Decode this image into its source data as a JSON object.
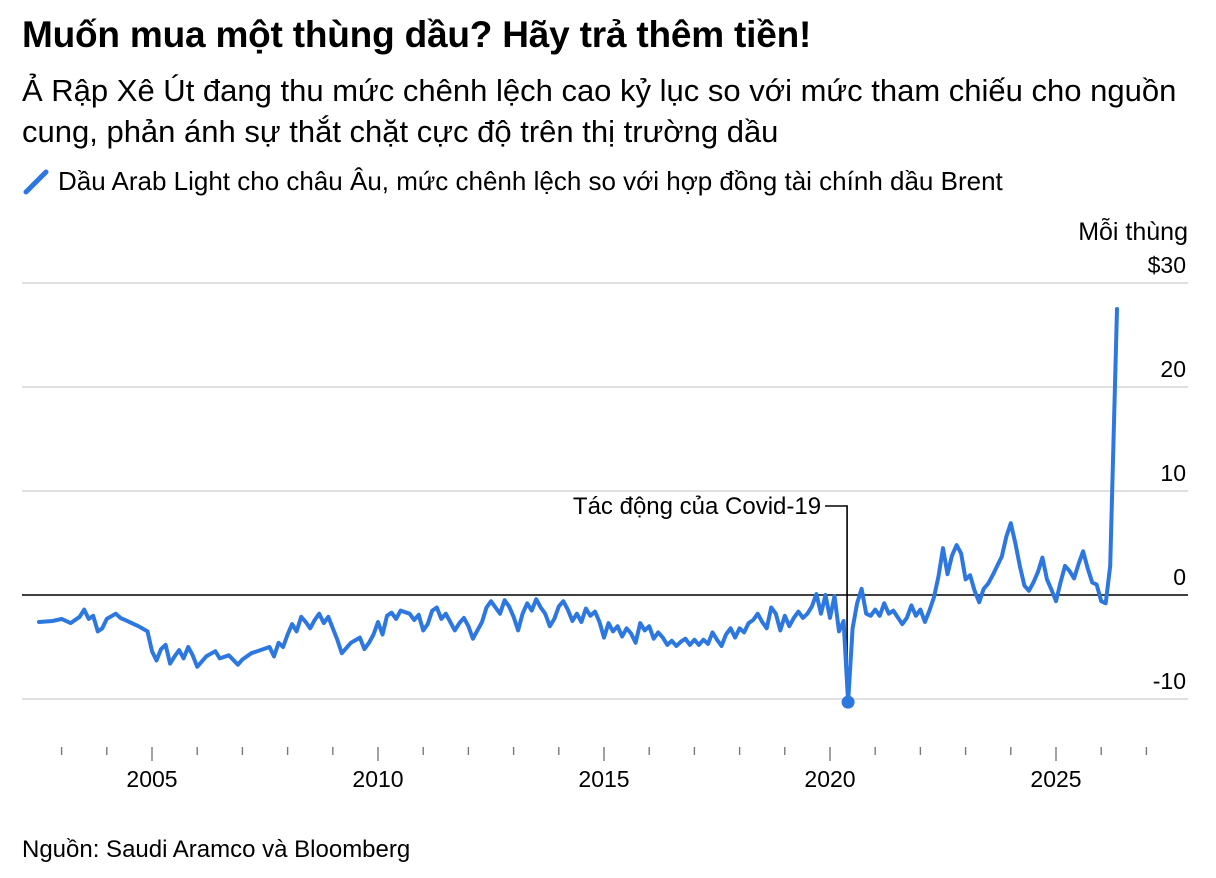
{
  "chart_data": {
    "type": "line",
    "title": "Muốn mua một thùng dầu? Hãy trả thêm tiền!",
    "subtitle": "Ả Rập Xê Út đang thu mức chênh lệch cao kỷ lục so với mức tham chiếu cho nguồn cung, phản ánh sự thắt chặt cực độ trên thị trường dầu",
    "legend": "Dầu Arab Light cho châu Âu, mức chênh lệch so với hợp đồng tài chính dầu Brent",
    "ylabel": "Mỗi thùng",
    "source": "Nguồn: Saudi Aramco và Bloomberg",
    "annotation": {
      "text": "Tác động của Covid-19",
      "x": 2020.4,
      "y": -10.3
    },
    "xlim": [
      2002.3,
      2028.5
    ],
    "ylim": [
      -13,
      30
    ],
    "y_ticks": [
      {
        "value": 30,
        "label": "$30"
      },
      {
        "value": 20,
        "label": "20"
      },
      {
        "value": 10,
        "label": "10"
      },
      {
        "value": 0,
        "label": "0"
      },
      {
        "value": -10,
        "label": "-10"
      }
    ],
    "x_major_ticks": [
      {
        "value": 2005,
        "label": "2005"
      },
      {
        "value": 2010,
        "label": "2010"
      },
      {
        "value": 2015,
        "label": "2015"
      },
      {
        "value": 2020,
        "label": "2020"
      },
      {
        "value": 2025,
        "label": "2025"
      }
    ],
    "series": [
      {
        "name": "Dầu Arab Light cho châu Âu, mức chênh lệch so với hợp đồng tài chính dầu Brent",
        "color": "#2d77e0",
        "points": [
          [
            2002.5,
            -2.6
          ],
          [
            2002.8,
            -2.5
          ],
          [
            2003.0,
            -2.3
          ],
          [
            2003.2,
            -2.7
          ],
          [
            2003.4,
            -2.1
          ],
          [
            2003.5,
            -1.4
          ],
          [
            2003.6,
            -2.3
          ],
          [
            2003.7,
            -2.0
          ],
          [
            2003.8,
            -3.5
          ],
          [
            2003.9,
            -3.2
          ],
          [
            2004.0,
            -2.3
          ],
          [
            2004.2,
            -1.8
          ],
          [
            2004.3,
            -2.2
          ],
          [
            2004.5,
            -2.6
          ],
          [
            2004.7,
            -3.0
          ],
          [
            2004.9,
            -3.5
          ],
          [
            2005.0,
            -5.4
          ],
          [
            2005.1,
            -6.3
          ],
          [
            2005.2,
            -5.2
          ],
          [
            2005.3,
            -4.8
          ],
          [
            2005.4,
            -6.6
          ],
          [
            2005.5,
            -5.9
          ],
          [
            2005.6,
            -5.3
          ],
          [
            2005.7,
            -6.1
          ],
          [
            2005.8,
            -5.0
          ],
          [
            2005.9,
            -5.8
          ],
          [
            2006.0,
            -6.9
          ],
          [
            2006.2,
            -5.9
          ],
          [
            2006.4,
            -5.4
          ],
          [
            2006.5,
            -6.1
          ],
          [
            2006.7,
            -5.8
          ],
          [
            2006.9,
            -6.7
          ],
          [
            2007.0,
            -6.2
          ],
          [
            2007.2,
            -5.6
          ],
          [
            2007.4,
            -5.3
          ],
          [
            2007.6,
            -5.0
          ],
          [
            2007.7,
            -5.9
          ],
          [
            2007.8,
            -4.6
          ],
          [
            2007.9,
            -5.0
          ],
          [
            2008.0,
            -3.8
          ],
          [
            2008.1,
            -2.8
          ],
          [
            2008.2,
            -3.5
          ],
          [
            2008.3,
            -2.1
          ],
          [
            2008.4,
            -2.6
          ],
          [
            2008.5,
            -3.2
          ],
          [
            2008.6,
            -2.4
          ],
          [
            2008.7,
            -1.8
          ],
          [
            2008.8,
            -2.7
          ],
          [
            2008.9,
            -2.1
          ],
          [
            2009.0,
            -3.2
          ],
          [
            2009.1,
            -4.3
          ],
          [
            2009.2,
            -5.6
          ],
          [
            2009.4,
            -4.6
          ],
          [
            2009.6,
            -4.1
          ],
          [
            2009.7,
            -5.2
          ],
          [
            2009.8,
            -4.6
          ],
          [
            2009.9,
            -3.8
          ],
          [
            2010.0,
            -2.6
          ],
          [
            2010.1,
            -3.8
          ],
          [
            2010.2,
            -2.0
          ],
          [
            2010.3,
            -1.7
          ],
          [
            2010.4,
            -2.3
          ],
          [
            2010.5,
            -1.5
          ],
          [
            2010.7,
            -1.8
          ],
          [
            2010.8,
            -2.4
          ],
          [
            2010.9,
            -1.9
          ],
          [
            2011.0,
            -3.4
          ],
          [
            2011.1,
            -2.8
          ],
          [
            2011.2,
            -1.5
          ],
          [
            2011.3,
            -1.2
          ],
          [
            2011.4,
            -2.3
          ],
          [
            2011.5,
            -1.8
          ],
          [
            2011.6,
            -2.6
          ],
          [
            2011.7,
            -3.4
          ],
          [
            2011.8,
            -2.7
          ],
          [
            2011.9,
            -2.2
          ],
          [
            2012.0,
            -3.0
          ],
          [
            2012.1,
            -4.2
          ],
          [
            2012.3,
            -2.6
          ],
          [
            2012.4,
            -1.2
          ],
          [
            2012.5,
            -0.6
          ],
          [
            2012.6,
            -1.2
          ],
          [
            2012.7,
            -1.8
          ],
          [
            2012.8,
            -0.5
          ],
          [
            2012.9,
            -1.1
          ],
          [
            2013.0,
            -2.1
          ],
          [
            2013.1,
            -3.4
          ],
          [
            2013.2,
            -1.8
          ],
          [
            2013.3,
            -0.8
          ],
          [
            2013.4,
            -1.5
          ],
          [
            2013.5,
            -0.4
          ],
          [
            2013.6,
            -1.2
          ],
          [
            2013.7,
            -1.8
          ],
          [
            2013.8,
            -3.0
          ],
          [
            2013.9,
            -2.3
          ],
          [
            2014.0,
            -1.1
          ],
          [
            2014.1,
            -0.6
          ],
          [
            2014.2,
            -1.4
          ],
          [
            2014.3,
            -2.5
          ],
          [
            2014.4,
            -1.8
          ],
          [
            2014.5,
            -2.6
          ],
          [
            2014.6,
            -1.3
          ],
          [
            2014.7,
            -2.0
          ],
          [
            2014.8,
            -1.6
          ],
          [
            2014.9,
            -2.6
          ],
          [
            2015.0,
            -4.1
          ],
          [
            2015.1,
            -2.7
          ],
          [
            2015.2,
            -3.5
          ],
          [
            2015.3,
            -3.0
          ],
          [
            2015.4,
            -4.0
          ],
          [
            2015.5,
            -3.2
          ],
          [
            2015.6,
            -3.7
          ],
          [
            2015.7,
            -4.6
          ],
          [
            2015.8,
            -2.7
          ],
          [
            2015.9,
            -3.4
          ],
          [
            2016.0,
            -3.0
          ],
          [
            2016.1,
            -4.2
          ],
          [
            2016.2,
            -3.6
          ],
          [
            2016.3,
            -4.1
          ],
          [
            2016.4,
            -4.8
          ],
          [
            2016.5,
            -4.4
          ],
          [
            2016.6,
            -4.9
          ],
          [
            2016.7,
            -4.5
          ],
          [
            2016.8,
            -4.2
          ],
          [
            2016.9,
            -4.8
          ],
          [
            2017.0,
            -4.3
          ],
          [
            2017.1,
            -4.8
          ],
          [
            2017.2,
            -4.3
          ],
          [
            2017.3,
            -4.7
          ],
          [
            2017.4,
            -3.6
          ],
          [
            2017.5,
            -4.3
          ],
          [
            2017.6,
            -4.9
          ],
          [
            2017.7,
            -3.8
          ],
          [
            2017.8,
            -3.2
          ],
          [
            2017.9,
            -4.1
          ],
          [
            2018.0,
            -3.2
          ],
          [
            2018.1,
            -3.6
          ],
          [
            2018.2,
            -2.7
          ],
          [
            2018.3,
            -2.4
          ],
          [
            2018.4,
            -1.8
          ],
          [
            2018.5,
            -2.6
          ],
          [
            2018.6,
            -3.2
          ],
          [
            2018.7,
            -1.2
          ],
          [
            2018.8,
            -1.8
          ],
          [
            2018.9,
            -3.4
          ],
          [
            2019.0,
            -2.0
          ],
          [
            2019.1,
            -3.0
          ],
          [
            2019.2,
            -2.2
          ],
          [
            2019.3,
            -1.6
          ],
          [
            2019.4,
            -2.2
          ],
          [
            2019.5,
            -1.8
          ],
          [
            2019.6,
            -1.1
          ],
          [
            2019.7,
            0.1
          ],
          [
            2019.8,
            -1.8
          ],
          [
            2019.9,
            0.0
          ],
          [
            2020.0,
            -2.2
          ],
          [
            2020.1,
            -0.1
          ],
          [
            2020.2,
            -3.5
          ],
          [
            2020.3,
            -2.5
          ],
          [
            2020.4,
            -10.3
          ],
          [
            2020.5,
            -3.2
          ],
          [
            2020.6,
            -0.8
          ],
          [
            2020.7,
            0.6
          ],
          [
            2020.8,
            -1.8
          ],
          [
            2020.9,
            -2.0
          ],
          [
            2021.0,
            -1.4
          ],
          [
            2021.1,
            -2.0
          ],
          [
            2021.2,
            -0.8
          ],
          [
            2021.3,
            -1.8
          ],
          [
            2021.4,
            -1.5
          ],
          [
            2021.6,
            -2.8
          ],
          [
            2021.7,
            -2.2
          ],
          [
            2021.8,
            -1.0
          ],
          [
            2021.9,
            -2.0
          ],
          [
            2022.0,
            -1.4
          ],
          [
            2022.1,
            -2.6
          ],
          [
            2022.2,
            -1.5
          ],
          [
            2022.3,
            -0.2
          ],
          [
            2022.4,
            1.8
          ],
          [
            2022.5,
            4.5
          ],
          [
            2022.6,
            2.0
          ],
          [
            2022.7,
            3.8
          ],
          [
            2022.8,
            4.8
          ],
          [
            2022.9,
            4.0
          ],
          [
            2023.0,
            1.5
          ],
          [
            2023.1,
            1.9
          ],
          [
            2023.2,
            0.4
          ],
          [
            2023.3,
            -0.7
          ],
          [
            2023.4,
            0.6
          ],
          [
            2023.5,
            1.1
          ],
          [
            2023.6,
            1.9
          ],
          [
            2023.7,
            2.8
          ],
          [
            2023.8,
            3.7
          ],
          [
            2023.9,
            5.6
          ],
          [
            2024.0,
            6.9
          ],
          [
            2024.1,
            5.0
          ],
          [
            2024.2,
            2.8
          ],
          [
            2024.3,
            0.9
          ],
          [
            2024.4,
            0.4
          ],
          [
            2024.5,
            1.2
          ],
          [
            2024.6,
            2.2
          ],
          [
            2024.7,
            3.6
          ],
          [
            2024.8,
            1.5
          ],
          [
            2024.9,
            0.5
          ],
          [
            2025.0,
            -0.6
          ],
          [
            2025.1,
            1.2
          ],
          [
            2025.2,
            2.8
          ],
          [
            2025.3,
            2.3
          ],
          [
            2025.4,
            1.6
          ],
          [
            2025.5,
            3.0
          ],
          [
            2025.6,
            4.2
          ],
          [
            2025.7,
            2.6
          ],
          [
            2025.8,
            1.2
          ],
          [
            2025.9,
            1.0
          ],
          [
            2026.0,
            -0.6
          ],
          [
            2026.1,
            -0.8
          ],
          [
            2026.2,
            2.8
          ],
          [
            2026.35,
            27.5
          ]
        ]
      }
    ]
  }
}
